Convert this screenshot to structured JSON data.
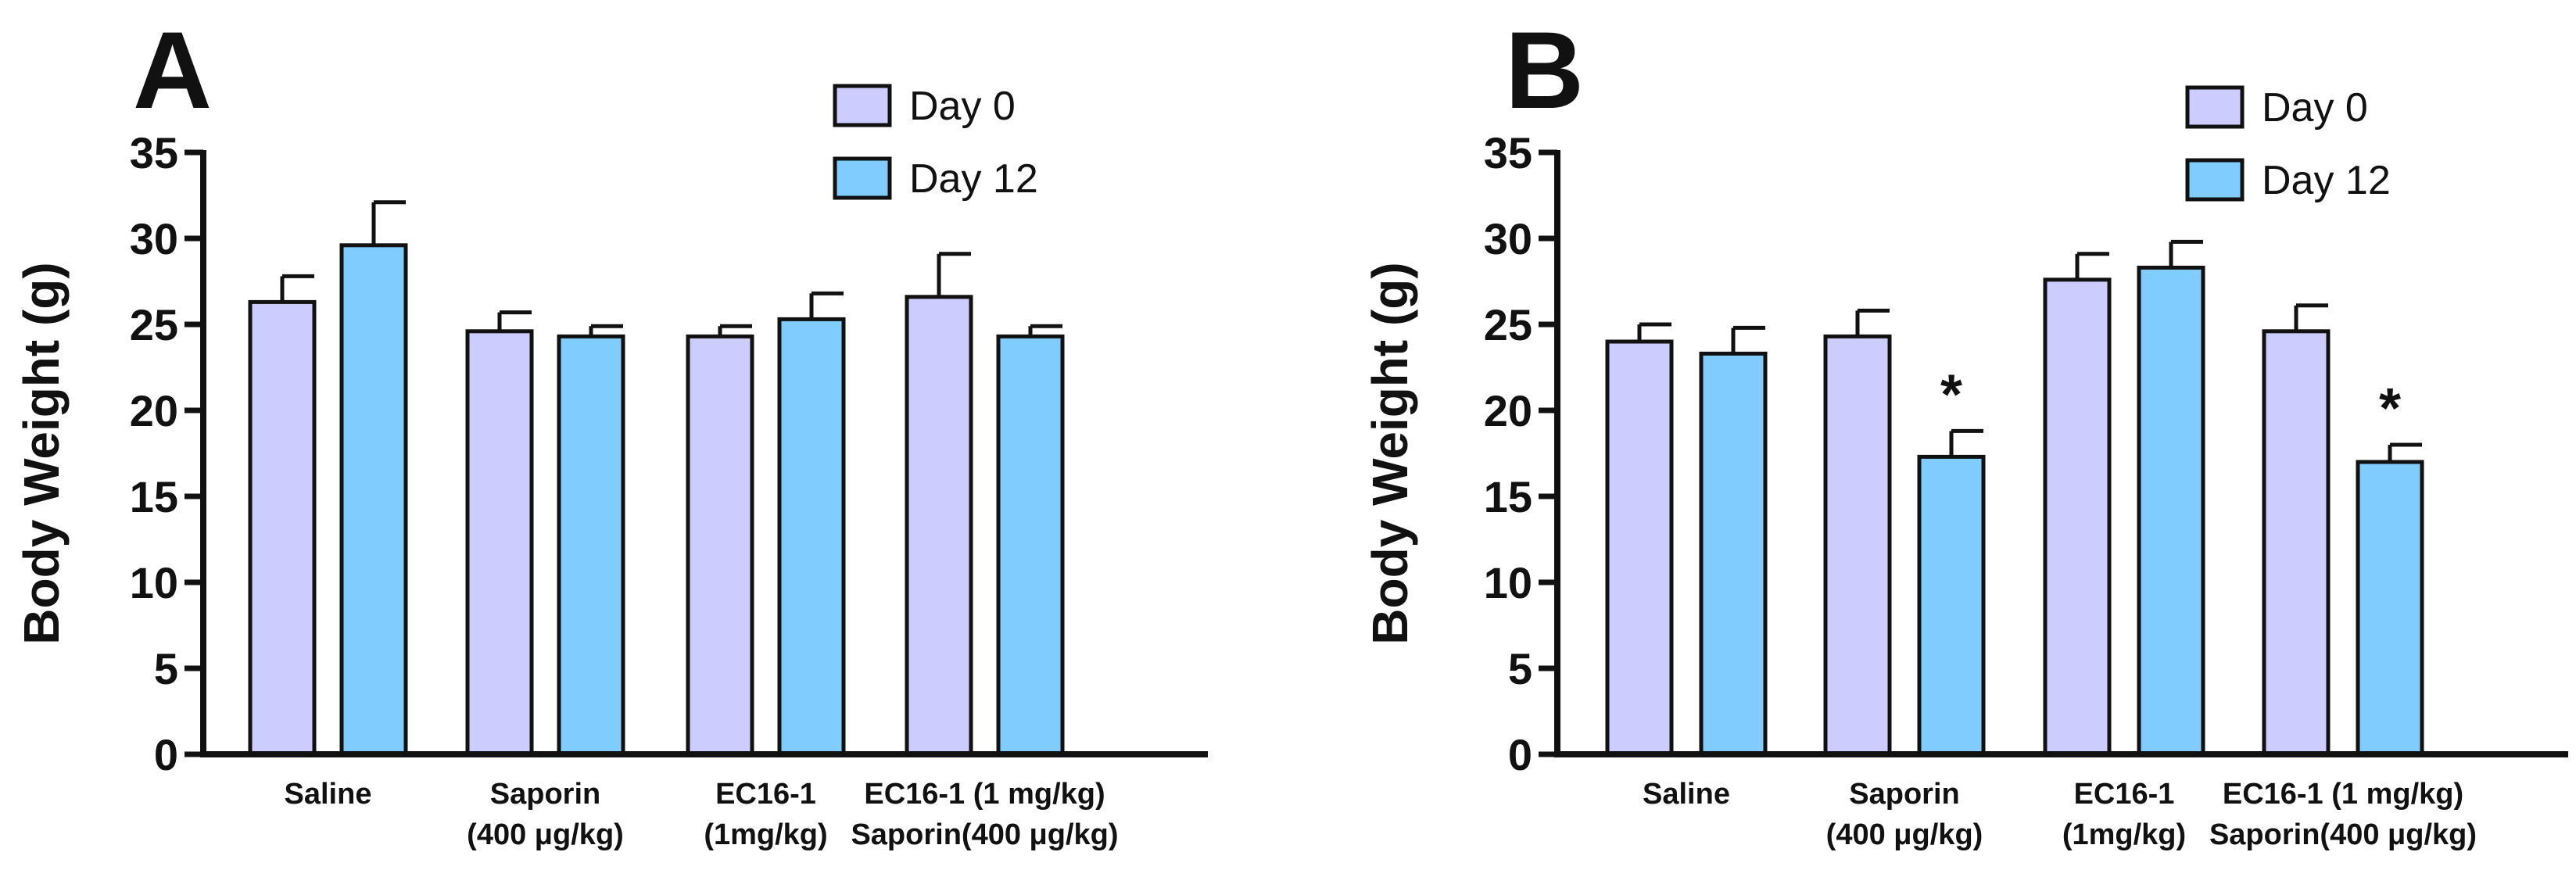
{
  "chart_data": [
    {
      "panel": "A",
      "type": "bar",
      "ylabel": "Body Weight (g)",
      "ylim": [
        0,
        35
      ],
      "yticks": [
        0,
        5,
        10,
        15,
        20,
        25,
        30,
        35
      ],
      "categories": [
        {
          "line1": "Saline",
          "line2": ""
        },
        {
          "line1": "Saporin",
          "line2": "(400 μg/kg)"
        },
        {
          "line1": "EC16-1",
          "line2": "(1mg/kg)"
        },
        {
          "line1": "EC16-1 (1 mg/kg)",
          "line2": "Saporin(400 μg/kg)"
        }
      ],
      "series": [
        {
          "name": "Day 0",
          "color": "#ccccff",
          "values": [
            26.3,
            24.6,
            24.3,
            26.6
          ],
          "errors": [
            1.5,
            1.1,
            0.6,
            2.5
          ],
          "significance": [
            "",
            "",
            "",
            ""
          ]
        },
        {
          "name": "Day 12",
          "color": "#80ccff",
          "values": [
            29.6,
            24.3,
            25.3,
            24.3
          ],
          "errors": [
            2.5,
            0.6,
            1.5,
            0.6
          ],
          "significance": [
            "",
            "",
            "",
            ""
          ]
        }
      ],
      "legend_position": "top-right"
    },
    {
      "panel": "B",
      "type": "bar",
      "ylabel": "Body Weight (g)",
      "ylim": [
        0,
        35
      ],
      "yticks": [
        0,
        5,
        10,
        15,
        20,
        25,
        30,
        35
      ],
      "categories": [
        {
          "line1": "Saline",
          "line2": ""
        },
        {
          "line1": "Saporin",
          "line2": "(400 μg/kg)"
        },
        {
          "line1": "EC16-1",
          "line2": "(1mg/kg)"
        },
        {
          "line1": "EC16-1 (1 mg/kg)",
          "line2": "Saporin(400 μg/kg)"
        }
      ],
      "series": [
        {
          "name": "Day 0",
          "color": "#ccccff",
          "values": [
            24.0,
            24.3,
            27.6,
            24.6
          ],
          "errors": [
            1.0,
            1.5,
            1.5,
            1.5
          ],
          "significance": [
            "",
            "",
            "",
            ""
          ]
        },
        {
          "name": "Day 12",
          "color": "#80ccff",
          "values": [
            23.3,
            17.3,
            28.3,
            17.0
          ],
          "errors": [
            1.5,
            1.5,
            1.5,
            1.0
          ],
          "significance": [
            "",
            "*",
            "",
            "*"
          ]
        }
      ],
      "legend_position": "top-right"
    }
  ]
}
